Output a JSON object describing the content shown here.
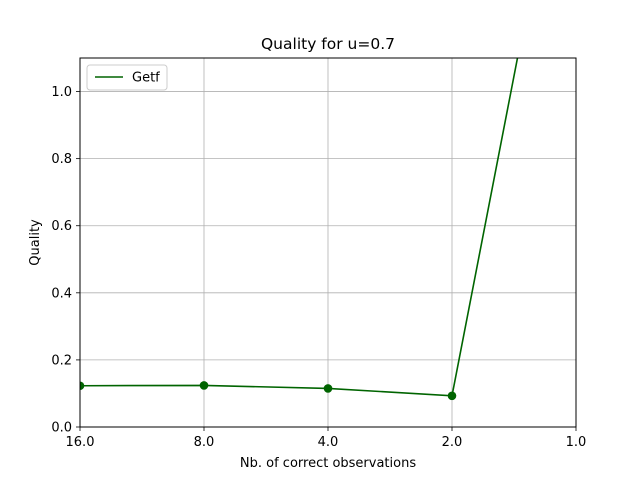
{
  "chart_data": {
    "type": "line",
    "title": "Quality for u=0.7",
    "xlabel": "Nb. of correct observations",
    "ylabel": "Quality",
    "x_scale": "log2",
    "x_reversed": true,
    "xlim": [
      16.0,
      1.0
    ],
    "ylim": [
      0.0,
      1.1
    ],
    "x_ticks": [
      16.0,
      8.0,
      4.0,
      2.0,
      1.0
    ],
    "x_tick_labels": [
      "16.0",
      "8.0",
      "4.0",
      "2.0",
      "1.0"
    ],
    "y_ticks": [
      0.0,
      0.2,
      0.4,
      0.6,
      0.8,
      1.0
    ],
    "y_tick_labels": [
      "0.0",
      "0.2",
      "0.4",
      "0.6",
      "0.8",
      "1.0"
    ],
    "grid": true,
    "legend_position": "top-left",
    "series": [
      {
        "name": "Getf",
        "color": "#006400",
        "x": [
          16.0,
          8.0,
          4.0,
          2.0,
          1.0
        ],
        "y": [
          0.123,
          0.124,
          0.115,
          0.093,
          2.0
        ],
        "markers": [
          true,
          true,
          true,
          true,
          false
        ]
      }
    ]
  }
}
